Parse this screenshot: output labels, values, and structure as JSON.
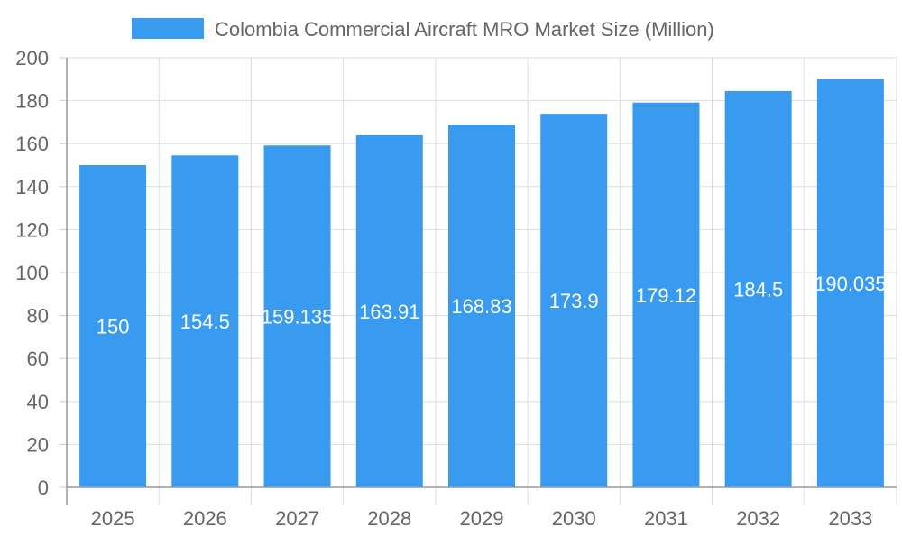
{
  "chart_data": {
    "type": "bar",
    "title": "",
    "xlabel": "",
    "ylabel": "",
    "categories": [
      "2025",
      "2026",
      "2027",
      "2028",
      "2029",
      "2030",
      "2031",
      "2032",
      "2033"
    ],
    "series": [
      {
        "name": "Colombia Commercial Aircraft MRO Market Size (Million)",
        "values": [
          150,
          154.5,
          159.135,
          163.91,
          168.83,
          173.9,
          179.12,
          184.5,
          190.035
        ],
        "data_labels": [
          "150",
          "154.5",
          "159.135",
          "163.91",
          "168.83",
          "173.9",
          "179.12",
          "184.5",
          "190.035"
        ],
        "color": "#389BEF"
      }
    ],
    "ylim": [
      0,
      200
    ],
    "yticks": [
      "0",
      "20",
      "40",
      "60",
      "80",
      "100",
      "120",
      "140",
      "160",
      "180",
      "200"
    ],
    "grid": true,
    "legend": "top"
  }
}
